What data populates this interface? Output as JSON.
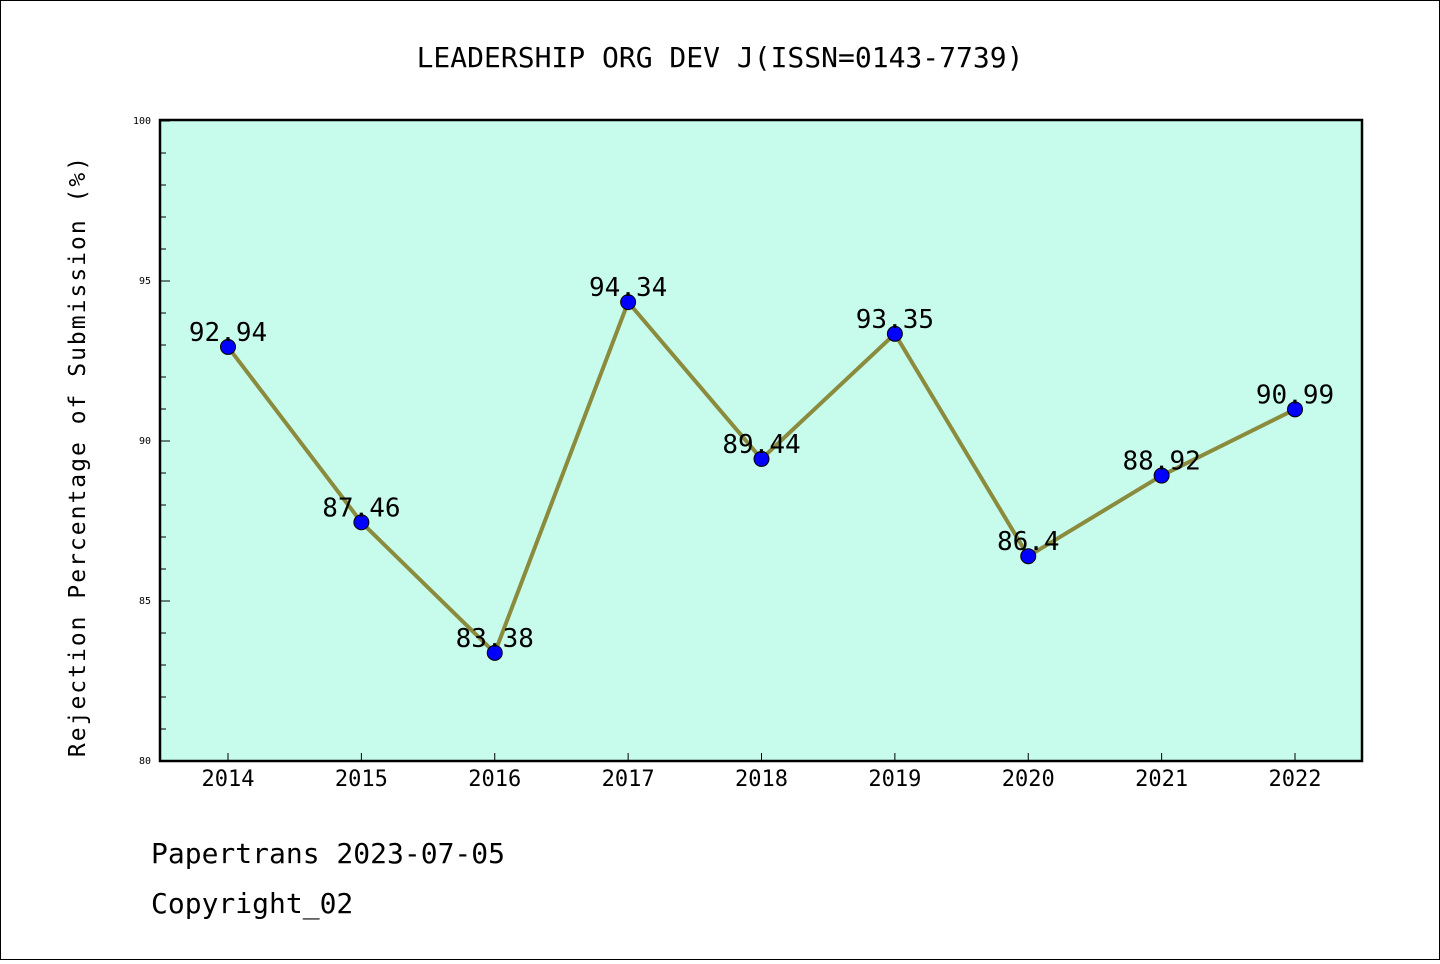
{
  "chart_data": {
    "type": "line",
    "title": "LEADERSHIP ORG DEV J(ISSN=0143-7739)",
    "xlabel": "",
    "ylabel": "Rejection Percentage of Submission (%)",
    "categories": [
      "2014",
      "2015",
      "2016",
      "2017",
      "2018",
      "2019",
      "2020",
      "2021",
      "2022"
    ],
    "series": [
      {
        "values": [
          92.94,
          87.46,
          83.38,
          94.34,
          89.44,
          93.35,
          86.4,
          88.92,
          90.99
        ],
        "labels": [
          "92.94",
          "87.46",
          "83.38",
          "94.34",
          "89.44",
          "93.35",
          "86.4",
          "88.92",
          "90.99"
        ]
      }
    ],
    "ylim": [
      80,
      100
    ],
    "y_ticks": [
      "80",
      "85",
      "90",
      "95",
      "100"
    ],
    "grid": false,
    "colors": {
      "plot_background": "#c7fcec",
      "line": "#8b8b3d",
      "marker": "#0000ff"
    }
  },
  "footer": {
    "line1": "Papertrans 2023-07-05",
    "line2": "Copyright_02"
  }
}
